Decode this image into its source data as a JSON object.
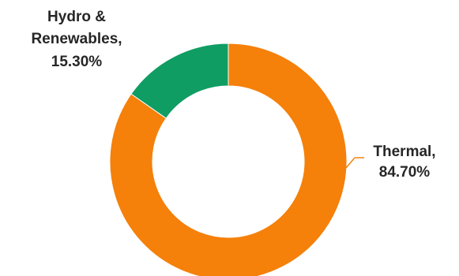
{
  "chart_data": {
    "type": "pie",
    "donut": true,
    "title": "",
    "slices": [
      {
        "label": "Thermal",
        "value": 84.7,
        "display": "84.70%",
        "color": "#F5800A"
      },
      {
        "label": "Hydro & Renewables",
        "value": 15.3,
        "display": "15.30%",
        "color": "#0F9D63"
      }
    ],
    "legend": "none",
    "data_labels": {
      "thermal": {
        "line1": "Thermal,",
        "line2": "84.70%"
      },
      "hydro": {
        "line1": "Hydro &",
        "line2": "Renewables,",
        "line3": "15.30%"
      }
    }
  }
}
